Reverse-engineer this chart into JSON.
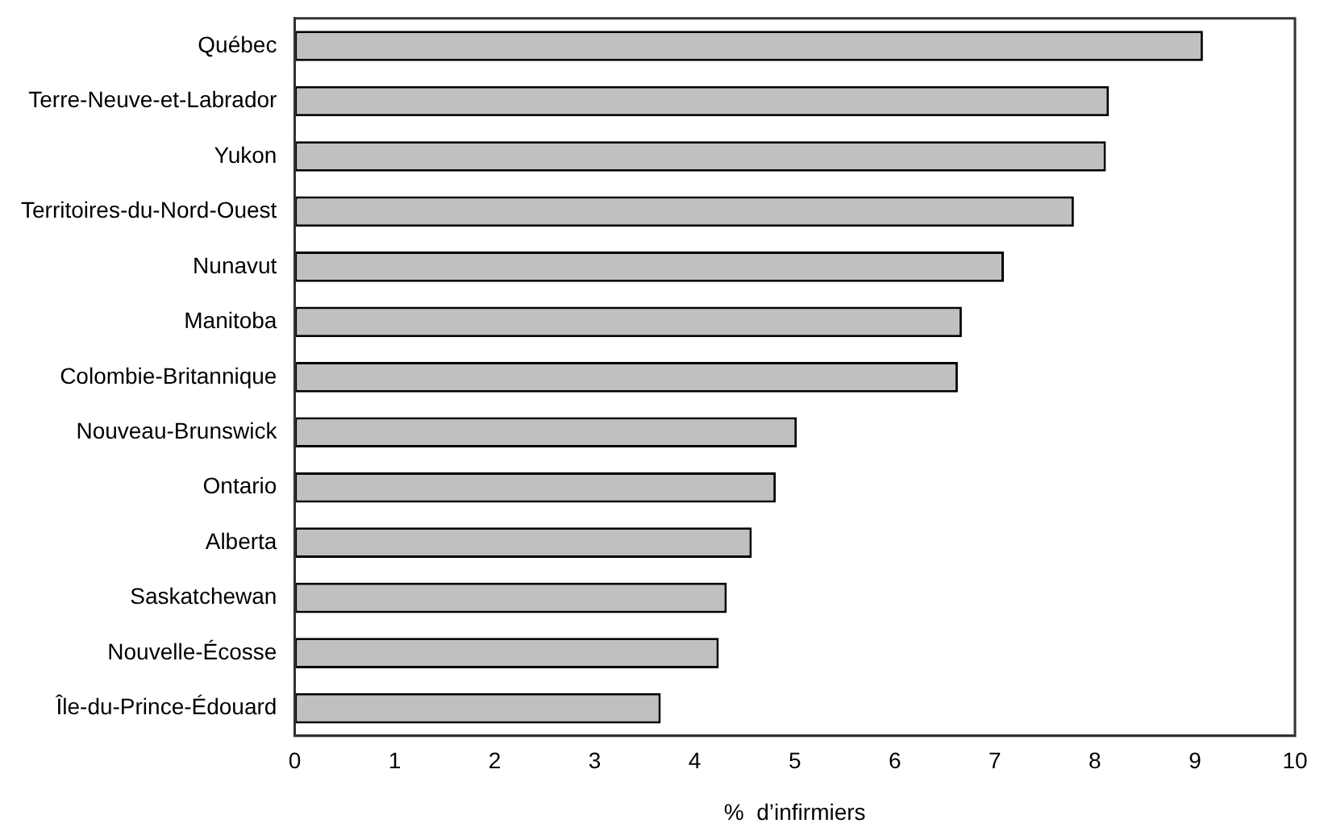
{
  "chart_data": {
    "type": "bar",
    "orientation": "horizontal",
    "xlabel": "%  d’infirmiers",
    "categories": [
      "Québec",
      "Terre-Neuve-et-Labrador",
      "Yukon",
      "Territoires-du-Nord-Ouest",
      "Nunavut",
      "Manitoba",
      "Colombie-Britannique",
      "Nouveau-Brunswick",
      "Ontario",
      "Alberta",
      "Saskatchewan",
      "Nouvelle-Écosse",
      "Île-du-Prince-Édouard"
    ],
    "values": [
      9.08,
      8.14,
      8.11,
      7.79,
      7.09,
      6.67,
      6.63,
      5.02,
      4.81,
      4.57,
      4.32,
      4.24,
      3.66
    ],
    "color": "#c0c0c0",
    "xlim": [
      0,
      10
    ],
    "xticks": [
      0,
      1,
      2,
      3,
      4,
      5,
      6,
      7,
      8,
      9,
      10
    ],
    "grid": false,
    "legend": false
  }
}
